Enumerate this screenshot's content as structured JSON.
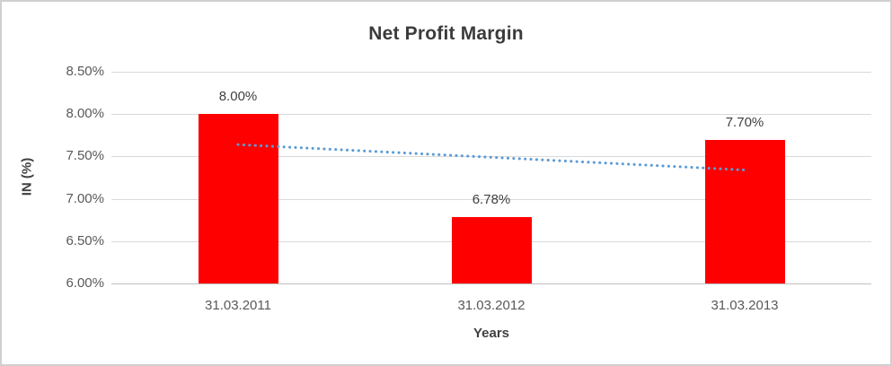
{
  "chart_data": {
    "type": "bar",
    "title": "Net Profit Margin",
    "xlabel": "Years",
    "ylabel": "IN (%)",
    "categories": [
      "31.03.2011",
      "31.03.2012",
      "31.03.2013"
    ],
    "series": [
      {
        "name": "Net Profit Margin",
        "values": [
          8.0,
          6.78,
          7.7
        ]
      }
    ],
    "data_labels": [
      "8.00%",
      "6.78%",
      "7.70%"
    ],
    "y_tick_labels": [
      "8.50%",
      "8.00%",
      "7.50%",
      "7.00%",
      "6.50%",
      "6.00%"
    ],
    "ylim": [
      6.0,
      8.5
    ],
    "y_tick_step": 0.5,
    "grid": true,
    "legend": "none",
    "bar_color": "#ff0000",
    "gridline_color": "#d9d9d9",
    "axis_line_color": "#bfbfbf",
    "title_color": "#3b3b3b",
    "tick_label_color": "#595959",
    "data_label_color": "#404040",
    "trendline": {
      "type": "linear",
      "style": "dotted",
      "color": "#5b9bd5",
      "start_value": 7.64,
      "end_value": 7.34
    }
  }
}
